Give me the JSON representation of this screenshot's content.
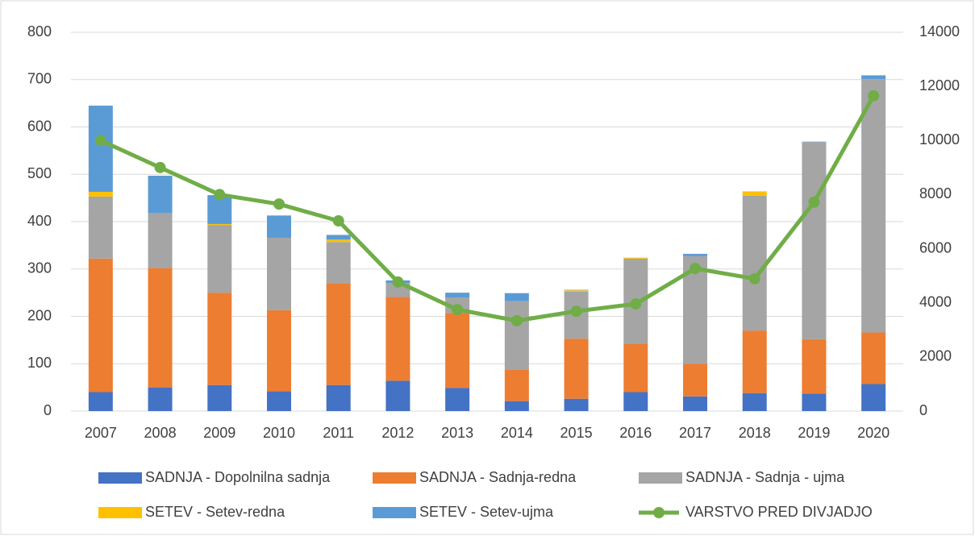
{
  "chart_data": {
    "type": "bar",
    "stacked": true,
    "categories": [
      "2007",
      "2008",
      "2009",
      "2010",
      "2011",
      "2012",
      "2013",
      "2014",
      "2015",
      "2016",
      "2017",
      "2018",
      "2019",
      "2020"
    ],
    "series": [
      {
        "name": "SADNJA - Dopolnilna sadnja",
        "color": "#4472c4",
        "type": "bar",
        "values": [
          40,
          50,
          55,
          42,
          55,
          64,
          49,
          21,
          26,
          40,
          31,
          38,
          37,
          57
        ]
      },
      {
        "name": "SADNJA - Sadnja-redna",
        "color": "#ed7d31",
        "type": "bar",
        "values": [
          282,
          252,
          195,
          171,
          215,
          177,
          158,
          67,
          127,
          102,
          69,
          132,
          115,
          109
        ]
      },
      {
        "name": "SADNJA - Sadnja - ujma",
        "color": "#a5a5a5",
        "type": "bar",
        "values": [
          131,
          116,
          143,
          153,
          87,
          29,
          33,
          144,
          99,
          180,
          227,
          285,
          416,
          535
        ]
      },
      {
        "name": "SETEV - Setev-redna",
        "color": "#ffc000",
        "type": "bar",
        "values": [
          10,
          0,
          2,
          0,
          5,
          0,
          0,
          0,
          3,
          2,
          0,
          9,
          0,
          0
        ]
      },
      {
        "name": "SETEV - Setev-ujma",
        "color": "#5b9bd5",
        "type": "bar",
        "values": [
          182,
          79,
          61,
          47,
          10,
          6,
          10,
          17,
          1,
          0,
          5,
          0,
          1,
          8
        ]
      },
      {
        "name": "VARSTVO PRED DIVJADJO",
        "color": "#70ad47",
        "type": "line",
        "axis": "y2",
        "values": [
          10000,
          9000,
          8000,
          7650,
          7030,
          4770,
          3750,
          3340,
          3690,
          3960,
          5270,
          4890,
          7720,
          11650
        ]
      }
    ],
    "ylim": [
      0,
      800
    ],
    "yticks": [
      0,
      100,
      200,
      300,
      400,
      500,
      600,
      700,
      800
    ],
    "y2lim": [
      0,
      14000
    ],
    "y2ticks": [
      0,
      2000,
      4000,
      6000,
      8000,
      10000,
      12000,
      14000
    ],
    "grid": true,
    "legend": "bottom"
  }
}
